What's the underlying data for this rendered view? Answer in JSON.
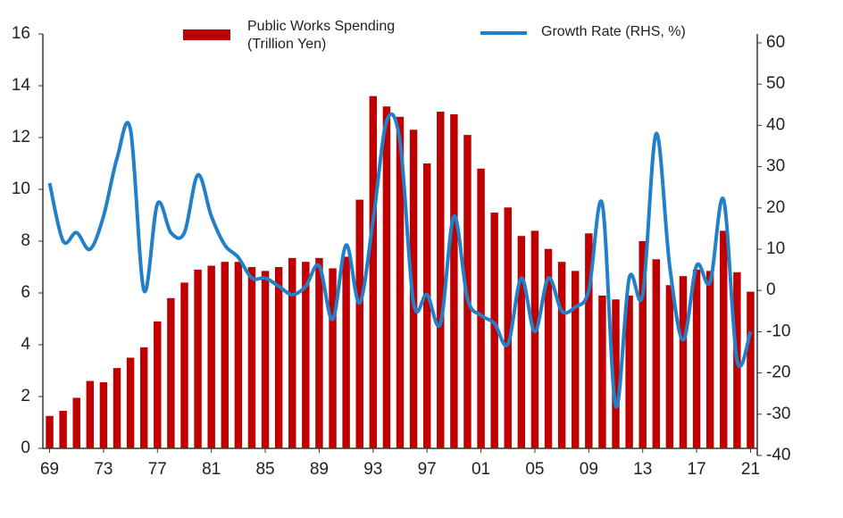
{
  "chart_data": {
    "type": "bar",
    "categories": [
      "69",
      null,
      null,
      null,
      "73",
      null,
      null,
      null,
      "77",
      null,
      null,
      null,
      "81",
      null,
      null,
      null,
      "85",
      null,
      null,
      null,
      "89",
      null,
      null,
      null,
      "93",
      null,
      null,
      null,
      "97",
      null,
      null,
      null,
      "01",
      null,
      null,
      null,
      "05",
      null,
      null,
      null,
      "09",
      null,
      null,
      null,
      "13",
      null,
      null,
      null,
      "17",
      null,
      null,
      null,
      "21"
    ],
    "series": [
      {
        "name": "Public Works Spending (Trillion Yen)",
        "type": "bar",
        "color": "#c00000",
        "values": [
          1.25,
          1.45,
          1.95,
          2.6,
          2.55,
          3.1,
          3.5,
          3.9,
          4.9,
          5.8,
          6.4,
          6.9,
          7.05,
          7.2,
          7.2,
          7.0,
          6.85,
          7.0,
          7.35,
          7.2,
          7.35,
          6.95,
          7.4,
          9.6,
          13.6,
          13.2,
          12.8,
          12.3,
          11.0,
          13.0,
          12.9,
          12.1,
          10.8,
          9.1,
          9.3,
          8.2,
          8.4,
          7.7,
          7.2,
          6.85,
          8.3,
          5.9,
          5.75,
          5.9,
          8.0,
          7.3,
          6.3,
          6.65,
          6.9,
          6.85,
          8.4,
          6.8,
          6.05
        ]
      },
      {
        "name": "Growth Rate (RHS, %)",
        "type": "line",
        "axis": "y2",
        "color": "#2380c8",
        "values": [
          26,
          12,
          14,
          10,
          18,
          32,
          39,
          0,
          21,
          14,
          14,
          28,
          18,
          11,
          8,
          3,
          3,
          1,
          -1,
          1,
          6,
          -7,
          11,
          -3,
          17,
          41,
          36,
          -3,
          -1,
          -8,
          18,
          -2,
          -6,
          -8,
          -13,
          3,
          -10,
          3,
          -5,
          -4,
          0,
          21,
          -28,
          3,
          -1,
          38,
          6,
          -12,
          6,
          2,
          22,
          -17,
          -10
        ]
      }
    ],
    "ylim": [
      0,
      16
    ],
    "yticks": [
      0,
      2,
      4,
      6,
      8,
      10,
      12,
      14,
      16
    ],
    "y2lim": [
      -40,
      60
    ],
    "y2ticks": [
      -40,
      -30,
      -20,
      -10,
      0,
      10,
      20,
      30,
      40,
      50,
      60
    ],
    "grid": false
  }
}
